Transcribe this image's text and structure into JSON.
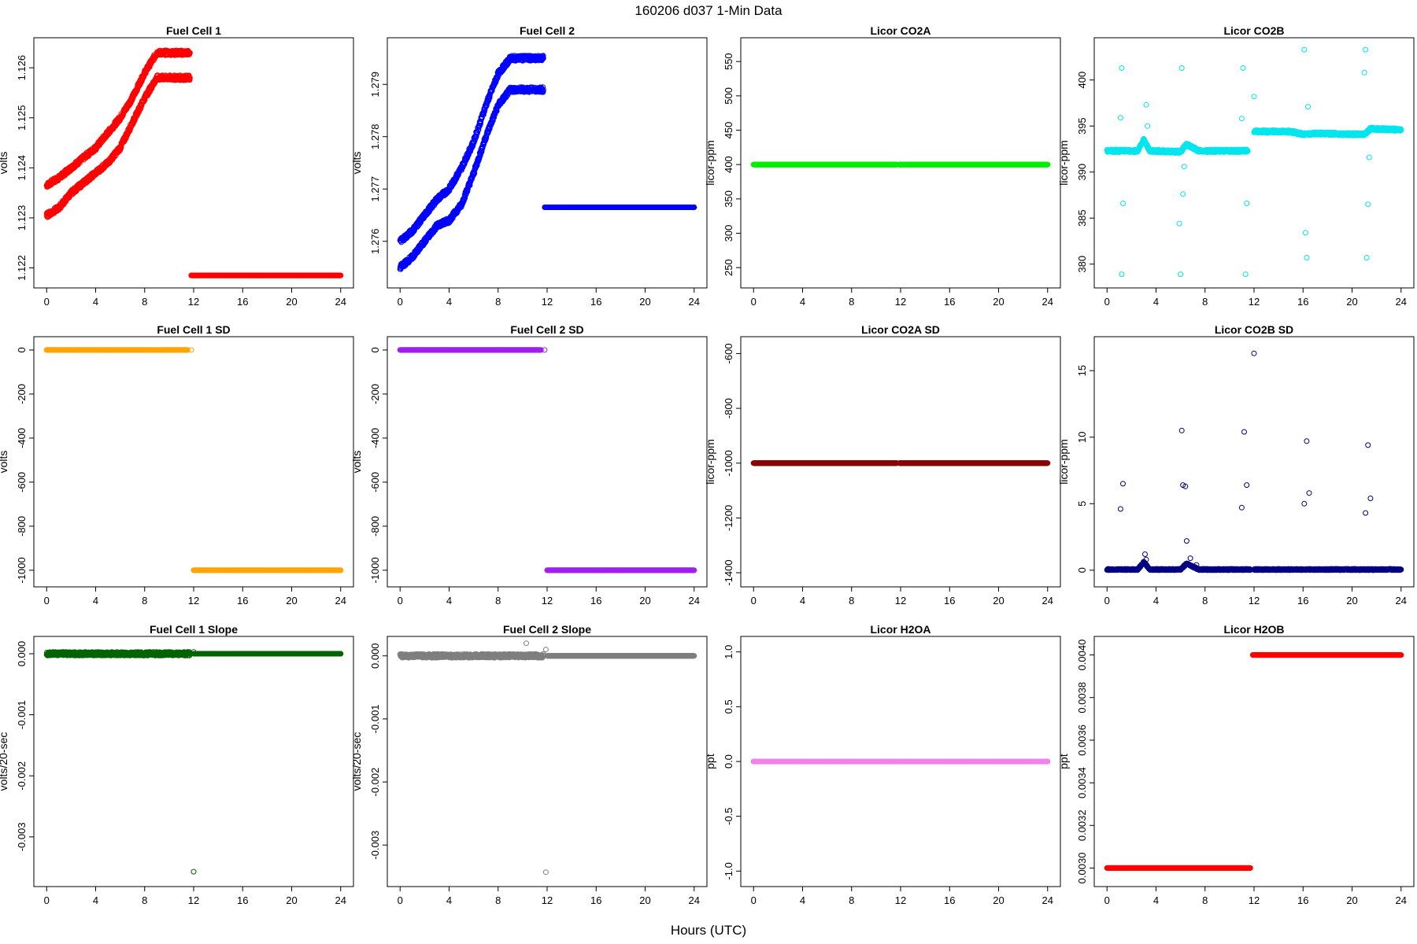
{
  "figure": {
    "title": "160206   d037   1-Min Data",
    "xlabel": "Hours (UTC)"
  },
  "chart_data": [
    {
      "type": "scatter",
      "title": "Fuel Cell 1",
      "ylabel": "volts",
      "xlim": [
        0,
        24
      ],
      "ylim": [
        1.1218,
        1.1264
      ],
      "xticks": [
        0,
        4,
        8,
        12,
        16,
        20,
        24
      ],
      "yticks": [
        "1.122",
        "1.123",
        "1.124",
        "1.125",
        "1.126"
      ],
      "color": "#ff0000",
      "segments": [
        {
          "x": [
            0,
            1,
            2,
            3,
            4,
            5,
            6,
            7,
            8,
            9,
            10,
            11.7
          ],
          "y": [
            1.12365,
            1.1238,
            1.124,
            1.1242,
            1.1244,
            1.1247,
            1.125,
            1.1254,
            1.1259,
            1.1263,
            1.1263,
            1.1263
          ],
          "jitter": 5e-05
        },
        {
          "x": [
            0,
            1,
            2,
            3,
            4,
            5,
            6,
            7,
            8,
            9,
            10,
            11.7
          ],
          "y": [
            1.12305,
            1.1232,
            1.1235,
            1.1237,
            1.1239,
            1.1241,
            1.1244,
            1.1249,
            1.1254,
            1.1258,
            1.1258,
            1.1258
          ],
          "jitter": 5e-05
        },
        {
          "x": [
            11.8,
            24
          ],
          "y": [
            1.12185,
            1.12185
          ],
          "jitter": 0
        }
      ]
    },
    {
      "type": "scatter",
      "title": "Fuel Cell 2",
      "ylabel": "volts",
      "xlim": [
        0,
        24
      ],
      "ylim": [
        1.2753,
        1.2797
      ],
      "xticks": [
        0,
        4,
        8,
        12,
        16,
        20,
        24
      ],
      "yticks": [
        "1.276",
        "1.277",
        "1.278",
        "1.279"
      ],
      "color": "#0000ff",
      "segments": [
        {
          "x": [
            0,
            1,
            2,
            3,
            4,
            5,
            6,
            7,
            8,
            9,
            10,
            11.7
          ],
          "y": [
            1.276,
            1.2762,
            1.2765,
            1.2768,
            1.277,
            1.2774,
            1.2779,
            1.2786,
            1.2792,
            1.2795,
            1.2795,
            1.2795
          ],
          "jitter": 5e-05
        },
        {
          "x": [
            0,
            1,
            2,
            3,
            4,
            5,
            6,
            7,
            8,
            9,
            10,
            11.7
          ],
          "y": [
            1.2755,
            1.2757,
            1.276,
            1.2763,
            1.2764,
            1.2767,
            1.2773,
            1.278,
            1.2786,
            1.2789,
            1.2789,
            1.2789
          ],
          "jitter": 5e-05
        },
        {
          "x": [
            11.8,
            24
          ],
          "y": [
            1.27665,
            1.27665
          ],
          "jitter": 0
        }
      ]
    },
    {
      "type": "scatter",
      "title": "Licor CO2A",
      "ylabel": "licor-ppm",
      "xlim": [
        0,
        24
      ],
      "ylim": [
        235,
        570
      ],
      "xticks": [
        0,
        4,
        8,
        12,
        16,
        20,
        24
      ],
      "yticks": [
        "250",
        "300",
        "350",
        "400",
        "450",
        "500",
        "550"
      ],
      "color": "#00ee00",
      "segments": [
        {
          "x": [
            0,
            11.7
          ],
          "y": [
            400,
            400
          ],
          "jitter": 0
        },
        {
          "x": [
            11.9,
            24
          ],
          "y": [
            400,
            400
          ],
          "jitter": 0
        }
      ]
    },
    {
      "type": "scatter",
      "title": "Licor CO2B",
      "ylabel": "licor-ppm",
      "xlim": [
        0,
        24
      ],
      "ylim": [
        378.5,
        403.5
      ],
      "xticks": [
        0,
        4,
        8,
        12,
        16,
        20,
        24
      ],
      "yticks": [
        "380",
        "385",
        "390",
        "395",
        "400"
      ],
      "color": "#00e5ee",
      "segments": [
        {
          "x": [
            0,
            2.5,
            3,
            3.5,
            6,
            6.5,
            7.5,
            11.5
          ],
          "y": [
            392.3,
            392.3,
            393.5,
            392.3,
            392.2,
            393.0,
            392.3,
            392.3
          ],
          "jitter": 0.15
        },
        {
          "x": [
            12,
            15,
            16,
            17,
            20,
            21,
            21.5,
            24
          ],
          "y": [
            394.4,
            394.4,
            394.1,
            394.2,
            394.1,
            394.1,
            394.7,
            394.6
          ],
          "jitter": 0.15
        }
      ],
      "outliers": {
        "x": [
          1.2,
          1.2,
          1.1,
          1.3,
          3.2,
          3.3,
          5.9,
          6.0,
          6.1,
          6.2,
          6.3,
          11.0,
          11.1,
          11.3,
          11.4,
          12.0,
          16.1,
          16.2,
          16.3,
          16.4,
          21.0,
          21.1,
          21.2,
          21.3,
          21.4
        ],
        "y": [
          401.3,
          378.9,
          395.9,
          386.6,
          397.3,
          395.0,
          384.4,
          378.9,
          401.3,
          387.6,
          390.6,
          395.8,
          401.3,
          378.9,
          386.6,
          398.2,
          403.3,
          383.4,
          380.7,
          397.1,
          400.8,
          403.3,
          380.7,
          386.5,
          391.6
        ]
      }
    },
    {
      "type": "scatter",
      "title": "Fuel Cell 1 SD",
      "ylabel": "volts",
      "xlim": [
        0,
        24
      ],
      "ylim": [
        -1030,
        15
      ],
      "xticks": [
        0,
        4,
        8,
        12,
        16,
        20,
        24
      ],
      "yticks": [
        "-1000",
        "-800",
        "-600",
        "-400",
        "-200",
        "0"
      ],
      "color": "#ffa500",
      "segments": [
        {
          "x": [
            0,
            11.5
          ],
          "y": [
            0,
            0
          ],
          "jitter": 0
        },
        {
          "x": [
            12,
            24
          ],
          "y": [
            -1000,
            -1000
          ],
          "jitter": 0
        }
      ],
      "outliers": {
        "x": [
          11.8
        ],
        "y": [
          0
        ]
      }
    },
    {
      "type": "scatter",
      "title": "Fuel Cell 2 SD",
      "ylabel": "volts",
      "xlim": [
        0,
        24
      ],
      "ylim": [
        -1030,
        15
      ],
      "xticks": [
        0,
        4,
        8,
        12,
        16,
        20,
        24
      ],
      "yticks": [
        "-1000",
        "-800",
        "-600",
        "-400",
        "-200",
        "0"
      ],
      "color": "#a020f0",
      "segments": [
        {
          "x": [
            0,
            11.5
          ],
          "y": [
            0,
            0
          ],
          "jitter": 0
        },
        {
          "x": [
            12,
            24
          ],
          "y": [
            -1000,
            -1000
          ],
          "jitter": 0
        }
      ],
      "outliers": {
        "x": [
          11.8
        ],
        "y": [
          0
        ]
      }
    },
    {
      "type": "scatter",
      "title": "Licor CO2A SD",
      "ylabel": "licor-ppm",
      "xlim": [
        0,
        24
      ],
      "ylim": [
        -1415,
        -575
      ],
      "xticks": [
        0,
        4,
        8,
        12,
        16,
        20,
        24
      ],
      "yticks": [
        "-1400",
        "-1200",
        "-1000",
        "-800",
        "-600"
      ],
      "color": "#8b0000",
      "segments": [
        {
          "x": [
            0,
            11.7
          ],
          "y": [
            -1000,
            -1000
          ],
          "jitter": 0
        },
        {
          "x": [
            11.9,
            24
          ],
          "y": [
            -1000,
            -1000
          ],
          "jitter": 0
        }
      ]
    },
    {
      "type": "scatter",
      "title": "Licor CO2B SD",
      "ylabel": "licor-ppm",
      "xlim": [
        0,
        24
      ],
      "ylim": [
        -0.5,
        16.8
      ],
      "xticks": [
        0,
        4,
        8,
        12,
        16,
        20,
        24
      ],
      "yticks": [
        "0",
        "5",
        "10",
        "15"
      ],
      "color": "#000080",
      "segments": [
        {
          "x": [
            0,
            2.5,
            3,
            3.5,
            6,
            6.5,
            7.5,
            11.7
          ],
          "y": [
            0.05,
            0.05,
            0.6,
            0.05,
            0.05,
            0.5,
            0.05,
            0.05
          ],
          "jitter": 0.05
        },
        {
          "x": [
            12,
            24
          ],
          "y": [
            0.05,
            0.05
          ],
          "jitter": 0.05
        }
      ],
      "outliers": {
        "x": [
          1.1,
          1.3,
          3.1,
          3.2,
          6.1,
          6.2,
          6.4,
          6.5,
          6.8,
          7.3,
          11.0,
          11.2,
          11.4,
          12.0,
          16.1,
          16.3,
          16.5,
          21.1,
          21.3,
          21.5
        ],
        "y": [
          4.6,
          6.5,
          1.2,
          0.8,
          10.5,
          6.4,
          6.3,
          2.2,
          0.9,
          0.4,
          4.7,
          10.4,
          6.4,
          16.3,
          5.0,
          9.7,
          5.8,
          4.3,
          9.4,
          5.4
        ]
      }
    },
    {
      "type": "scatter",
      "title": "Fuel Cell 1 Slope",
      "ylabel": "volts/20-sec",
      "xlim": [
        0,
        24
      ],
      "ylim": [
        -0.00365,
        0.00012
      ],
      "xticks": [
        0,
        4,
        8,
        12,
        16,
        20,
        24
      ],
      "yticks": [
        "-0.003",
        "-0.002",
        "-0.001",
        "0.000"
      ],
      "color": "#006400",
      "segments": [
        {
          "x": [
            0,
            11.7
          ],
          "y": [
            0,
            0
          ],
          "jitter": 3e-05
        },
        {
          "x": [
            12,
            24
          ],
          "y": [
            0,
            0
          ],
          "jitter": 0
        }
      ],
      "outliers": {
        "x": [
          12.0,
          12.0
        ],
        "y": [
          -0.00357,
          3e-05
        ]
      }
    },
    {
      "type": "scatter",
      "title": "Fuel Cell 2 Slope",
      "ylabel": "volts/20-sec",
      "xlim": [
        0,
        24
      ],
      "ylim": [
        -0.0035,
        0.00015
      ],
      "xticks": [
        0,
        4,
        8,
        12,
        16,
        20,
        24
      ],
      "yticks": [
        "-0.003",
        "-0.002",
        "-0.001",
        "0.000"
      ],
      "color": "#7f7f7f",
      "segments": [
        {
          "x": [
            0,
            11.7
          ],
          "y": [
            0,
            0
          ],
          "jitter": 3e-05
        },
        {
          "x": [
            12,
            24
          ],
          "y": [
            0,
            0
          ],
          "jitter": 0
        }
      ],
      "outliers": {
        "x": [
          10.3,
          11.9,
          11.9
        ],
        "y": [
          0.0002,
          0.0001,
          -0.00343
        ]
      }
    },
    {
      "type": "scatter",
      "title": "Licor H2OA",
      "ylabel": "ppt",
      "xlim": [
        0,
        24
      ],
      "ylim": [
        -1.05,
        1.05
      ],
      "xticks": [
        0,
        4,
        8,
        12,
        16,
        20,
        24
      ],
      "yticks": [
        "-1.0",
        "-0.5",
        "0.0",
        "0.5",
        "1.0"
      ],
      "color": "#ee82ee",
      "segments": [
        {
          "x": [
            0,
            11.7
          ],
          "y": [
            0,
            0
          ],
          "jitter": 0
        },
        {
          "x": [
            11.9,
            24
          ],
          "y": [
            0,
            0
          ],
          "jitter": 0
        }
      ]
    },
    {
      "type": "scatter",
      "title": "Licor H2OB",
      "ylabel": "ppt",
      "xlim": [
        0,
        24
      ],
      "ylim": [
        0.00296,
        0.00404
      ],
      "xticks": [
        0,
        4,
        8,
        12,
        16,
        20,
        24
      ],
      "yticks": [
        "0.0030",
        "0.0032",
        "0.0034",
        "0.0036",
        "0.0038",
        "0.0040"
      ],
      "color": "#ff0000",
      "segments": [
        {
          "x": [
            0,
            11.7
          ],
          "y": [
            0.003,
            0.003
          ],
          "jitter": 0
        },
        {
          "x": [
            11.9,
            24
          ],
          "y": [
            0.004,
            0.004
          ],
          "jitter": 0
        }
      ]
    }
  ]
}
